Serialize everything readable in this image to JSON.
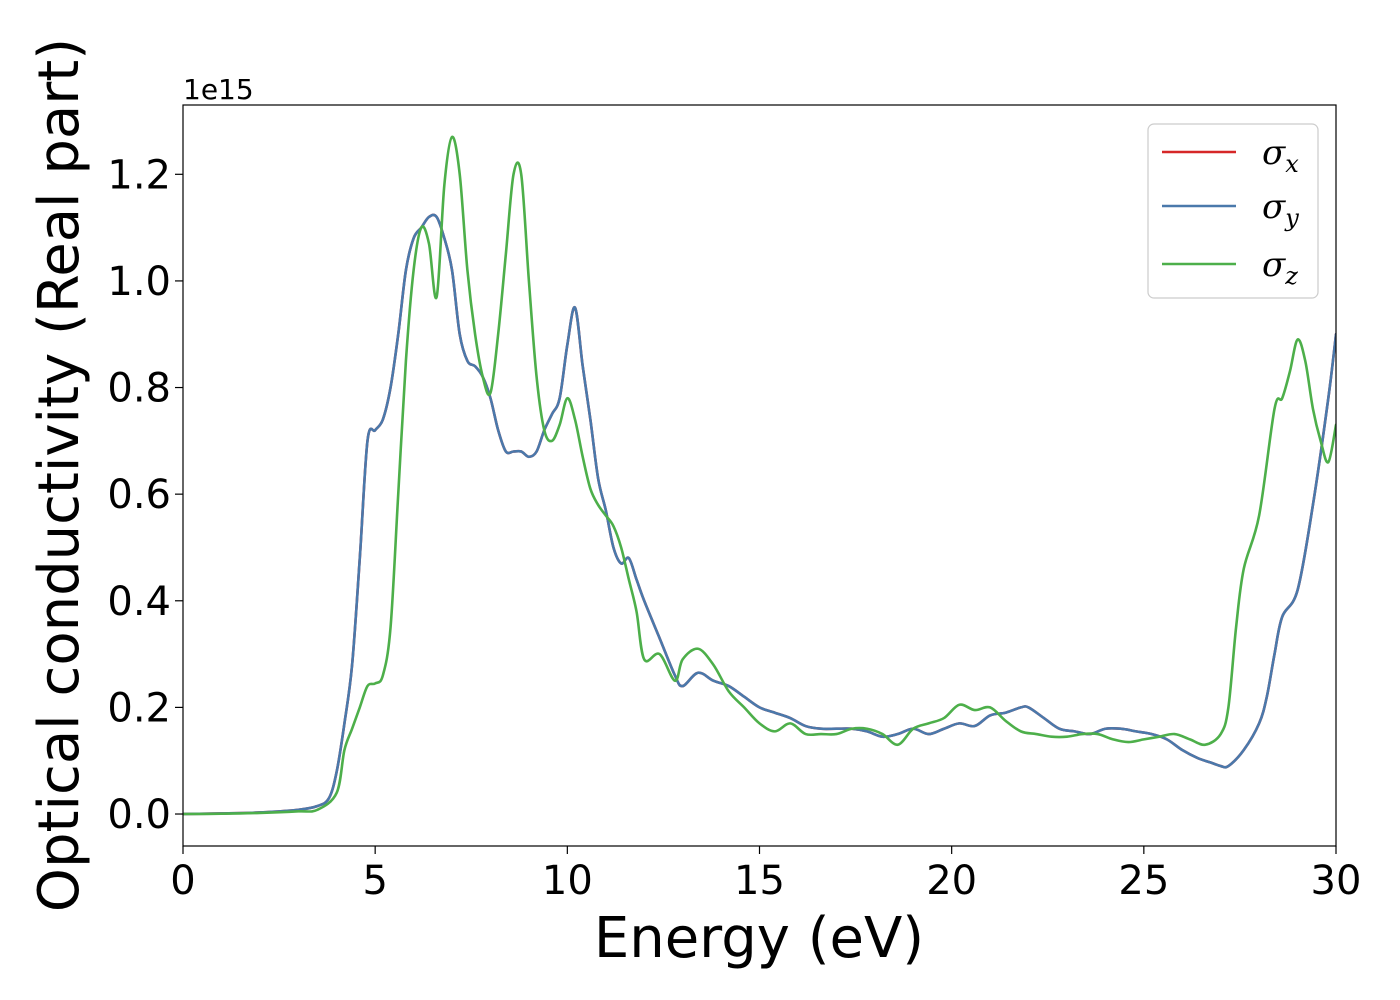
{
  "chart_data": {
    "type": "line",
    "title": "",
    "xlabel": "Energy (eV)",
    "ylabel": "Optical conductivity (Real part)",
    "y_offset_label": "1e15",
    "xlim": [
      0,
      30
    ],
    "ylim": [
      -0.06,
      1.33
    ],
    "y_unit_multiplier": 1000000000000000.0,
    "xticks": [
      0,
      5,
      10,
      15,
      20,
      25,
      30
    ],
    "yticks": [
      0.0,
      0.2,
      0.4,
      0.6,
      0.8,
      1.0,
      1.2
    ],
    "xtick_labels": [
      "0",
      "5",
      "10",
      "15",
      "20",
      "25",
      "30"
    ],
    "ytick_labels": [
      "0.0",
      "0.2",
      "0.4",
      "0.6",
      "0.8",
      "1.0",
      "1.2"
    ],
    "grid": false,
    "legend_position": "top-right",
    "series": [
      {
        "name": "σx",
        "label_base": "σ",
        "label_sub": "x",
        "color": "#d62728",
        "x": [
          0,
          1,
          2,
          3,
          3.5,
          3.8,
          4.0,
          4.2,
          4.4,
          4.6,
          4.8,
          5.0,
          5.2,
          5.4,
          5.6,
          5.8,
          6.0,
          6.2,
          6.4,
          6.6,
          6.8,
          7.0,
          7.2,
          7.4,
          7.6,
          7.8,
          8.0,
          8.2,
          8.4,
          8.6,
          8.8,
          9.0,
          9.2,
          9.4,
          9.6,
          9.8,
          10.0,
          10.2,
          10.4,
          10.6,
          10.8,
          11.0,
          11.2,
          11.4,
          11.6,
          11.8,
          12.0,
          12.4,
          12.8,
          13.0,
          13.4,
          13.8,
          14.2,
          14.6,
          15.0,
          15.4,
          15.8,
          16.2,
          16.6,
          17.0,
          17.4,
          17.8,
          18.2,
          18.6,
          19.0,
          19.4,
          19.8,
          20.2,
          20.6,
          21.0,
          21.4,
          21.8,
          22.0,
          22.4,
          22.8,
          23.2,
          23.6,
          24.0,
          24.4,
          24.8,
          25.2,
          25.6,
          26.0,
          26.4,
          26.8,
          27.0,
          27.2,
          27.6,
          28.0,
          28.2,
          28.4,
          28.6,
          29.0,
          29.4,
          29.8,
          30.0
        ],
        "y": [
          0.0,
          0.001,
          0.003,
          0.008,
          0.015,
          0.03,
          0.08,
          0.17,
          0.28,
          0.48,
          0.7,
          0.72,
          0.74,
          0.8,
          0.9,
          1.02,
          1.08,
          1.1,
          1.12,
          1.12,
          1.08,
          1.02,
          0.9,
          0.85,
          0.84,
          0.82,
          0.78,
          0.72,
          0.68,
          0.68,
          0.68,
          0.67,
          0.68,
          0.72,
          0.75,
          0.78,
          0.88,
          0.95,
          0.84,
          0.74,
          0.63,
          0.57,
          0.5,
          0.47,
          0.48,
          0.44,
          0.4,
          0.33,
          0.26,
          0.24,
          0.265,
          0.25,
          0.24,
          0.22,
          0.2,
          0.19,
          0.18,
          0.165,
          0.16,
          0.16,
          0.16,
          0.155,
          0.145,
          0.15,
          0.16,
          0.15,
          0.16,
          0.17,
          0.165,
          0.185,
          0.19,
          0.2,
          0.2,
          0.18,
          0.16,
          0.155,
          0.15,
          0.16,
          0.16,
          0.155,
          0.15,
          0.14,
          0.12,
          0.105,
          0.095,
          0.09,
          0.09,
          0.12,
          0.17,
          0.22,
          0.3,
          0.37,
          0.42,
          0.58,
          0.78,
          0.9
        ]
      },
      {
        "name": "σy",
        "label_base": "σ",
        "label_sub": "y",
        "color": "#4a79ab",
        "x": [
          0,
          1,
          2,
          3,
          3.5,
          3.8,
          4.0,
          4.2,
          4.4,
          4.6,
          4.8,
          5.0,
          5.2,
          5.4,
          5.6,
          5.8,
          6.0,
          6.2,
          6.4,
          6.6,
          6.8,
          7.0,
          7.2,
          7.4,
          7.6,
          7.8,
          8.0,
          8.2,
          8.4,
          8.6,
          8.8,
          9.0,
          9.2,
          9.4,
          9.6,
          9.8,
          10.0,
          10.2,
          10.4,
          10.6,
          10.8,
          11.0,
          11.2,
          11.4,
          11.6,
          11.8,
          12.0,
          12.4,
          12.8,
          13.0,
          13.4,
          13.8,
          14.2,
          14.6,
          15.0,
          15.4,
          15.8,
          16.2,
          16.6,
          17.0,
          17.4,
          17.8,
          18.2,
          18.6,
          19.0,
          19.4,
          19.8,
          20.2,
          20.6,
          21.0,
          21.4,
          21.8,
          22.0,
          22.4,
          22.8,
          23.2,
          23.6,
          24.0,
          24.4,
          24.8,
          25.2,
          25.6,
          26.0,
          26.4,
          26.8,
          27.0,
          27.2,
          27.6,
          28.0,
          28.2,
          28.4,
          28.6,
          29.0,
          29.4,
          29.8,
          30.0
        ],
        "y": [
          0.0,
          0.001,
          0.003,
          0.008,
          0.015,
          0.03,
          0.08,
          0.17,
          0.28,
          0.48,
          0.7,
          0.72,
          0.74,
          0.8,
          0.9,
          1.02,
          1.08,
          1.1,
          1.12,
          1.12,
          1.08,
          1.02,
          0.9,
          0.85,
          0.84,
          0.82,
          0.78,
          0.72,
          0.68,
          0.68,
          0.68,
          0.67,
          0.68,
          0.72,
          0.75,
          0.78,
          0.88,
          0.95,
          0.84,
          0.74,
          0.63,
          0.57,
          0.5,
          0.47,
          0.48,
          0.44,
          0.4,
          0.33,
          0.26,
          0.24,
          0.265,
          0.25,
          0.24,
          0.22,
          0.2,
          0.19,
          0.18,
          0.165,
          0.16,
          0.16,
          0.16,
          0.155,
          0.145,
          0.15,
          0.16,
          0.15,
          0.16,
          0.17,
          0.165,
          0.185,
          0.19,
          0.2,
          0.2,
          0.18,
          0.16,
          0.155,
          0.15,
          0.16,
          0.16,
          0.155,
          0.15,
          0.14,
          0.12,
          0.105,
          0.095,
          0.09,
          0.09,
          0.12,
          0.17,
          0.22,
          0.3,
          0.37,
          0.42,
          0.58,
          0.78,
          0.9
        ]
      },
      {
        "name": "σz",
        "label_base": "σ",
        "label_sub": "z",
        "color": "#4daf4a",
        "x": [
          0,
          1,
          2,
          3,
          3.5,
          4.0,
          4.2,
          4.4,
          4.6,
          4.8,
          5.0,
          5.2,
          5.4,
          5.6,
          5.8,
          6.0,
          6.2,
          6.4,
          6.6,
          6.8,
          7.0,
          7.2,
          7.4,
          7.6,
          7.8,
          8.0,
          8.2,
          8.4,
          8.6,
          8.8,
          9.0,
          9.2,
          9.4,
          9.6,
          9.8,
          10.0,
          10.2,
          10.4,
          10.6,
          10.8,
          11.0,
          11.2,
          11.4,
          11.6,
          11.8,
          12.0,
          12.4,
          12.8,
          13.0,
          13.4,
          13.8,
          14.2,
          14.6,
          15.0,
          15.4,
          15.8,
          16.2,
          16.6,
          17.0,
          17.4,
          17.8,
          18.2,
          18.6,
          19.0,
          19.4,
          19.8,
          20.2,
          20.6,
          21.0,
          21.4,
          21.8,
          22.2,
          22.6,
          23.0,
          23.4,
          23.8,
          24.2,
          24.6,
          25.0,
          25.4,
          25.8,
          26.2,
          26.6,
          27.0,
          27.2,
          27.4,
          27.6,
          28.0,
          28.4,
          28.6,
          28.8,
          29.0,
          29.2,
          29.4,
          29.6,
          29.8,
          30.0
        ],
        "y": [
          0.0,
          0.0005,
          0.002,
          0.005,
          0.008,
          0.04,
          0.12,
          0.16,
          0.2,
          0.24,
          0.245,
          0.26,
          0.35,
          0.6,
          0.85,
          1.02,
          1.1,
          1.07,
          0.97,
          1.18,
          1.27,
          1.2,
          1.02,
          0.9,
          0.82,
          0.79,
          0.9,
          1.05,
          1.2,
          1.2,
          1.0,
          0.82,
          0.72,
          0.7,
          0.73,
          0.78,
          0.74,
          0.67,
          0.61,
          0.58,
          0.56,
          0.54,
          0.5,
          0.44,
          0.38,
          0.29,
          0.3,
          0.25,
          0.29,
          0.31,
          0.28,
          0.23,
          0.2,
          0.17,
          0.155,
          0.17,
          0.15,
          0.15,
          0.15,
          0.16,
          0.16,
          0.15,
          0.13,
          0.16,
          0.17,
          0.18,
          0.205,
          0.195,
          0.2,
          0.175,
          0.155,
          0.15,
          0.145,
          0.145,
          0.15,
          0.15,
          0.14,
          0.135,
          0.14,
          0.145,
          0.15,
          0.14,
          0.13,
          0.15,
          0.2,
          0.35,
          0.46,
          0.56,
          0.76,
          0.78,
          0.83,
          0.89,
          0.85,
          0.76,
          0.7,
          0.66,
          0.73
        ]
      }
    ]
  }
}
